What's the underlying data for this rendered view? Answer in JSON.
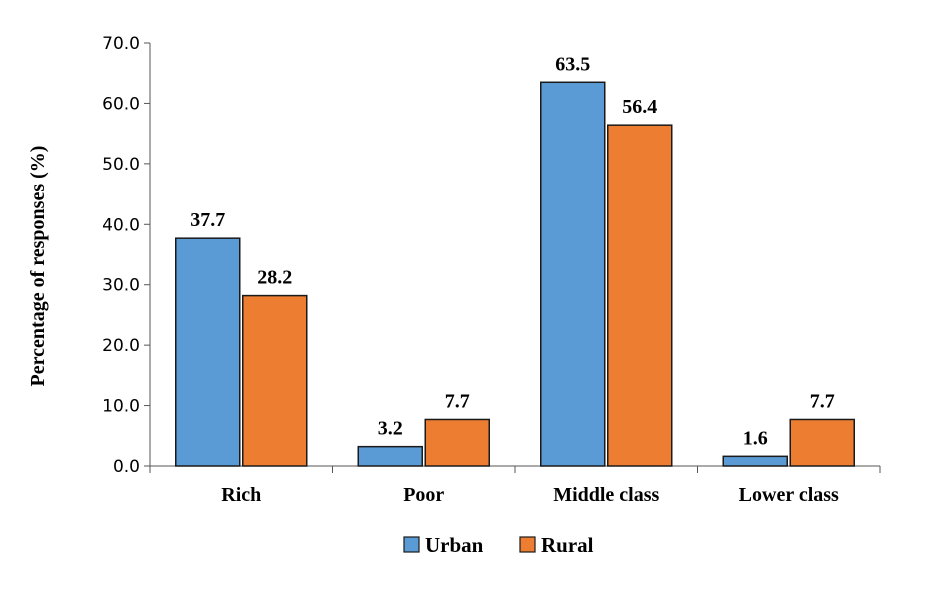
{
  "chart_data": {
    "type": "bar",
    "title": "",
    "xlabel": "",
    "ylabel": "Percentage of  responses (%)",
    "categories": [
      "Rich",
      "Poor",
      "Middle class",
      "Lower class"
    ],
    "series": [
      {
        "name": "Urban",
        "values": [
          37.7,
          3.2,
          63.5,
          1.6
        ],
        "color": "#5B9BD5"
      },
      {
        "name": "Rural",
        "values": [
          28.2,
          7.7,
          56.4,
          7.7
        ],
        "color": "#ED7D31"
      }
    ],
    "ylim": [
      0,
      70
    ],
    "yticks": [
      "0.0",
      "10.0",
      "20.0",
      "30.0",
      "40.0",
      "50.0",
      "60.0",
      "70.0"
    ],
    "data_labels": [
      [
        "37.7",
        "3.2",
        "63.5",
        "1.6"
      ],
      [
        "28.2",
        "7.7",
        "56.4",
        "7.7"
      ]
    ],
    "grid": false,
    "legend_position": "bottom"
  }
}
